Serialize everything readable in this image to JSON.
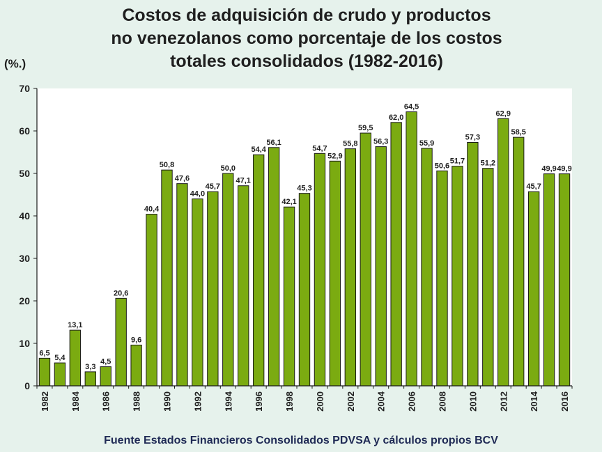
{
  "chart_data": {
    "type": "bar",
    "title": "Costos de adquisición de crudo y productos no venezolanos como porcentaje de los costos totales consolidados (1982-2016)",
    "ylabel": "(%.)",
    "ylim": [
      0,
      70
    ],
    "yticks": [
      0,
      10,
      20,
      30,
      40,
      50,
      60,
      70
    ],
    "grid": false,
    "categories": [
      "1982",
      "1983",
      "1984",
      "1985",
      "1986",
      "1987",
      "1988",
      "1989",
      "1990",
      "1991",
      "1992",
      "1993",
      "1994",
      "1995",
      "1996",
      "1997",
      "1998",
      "1999",
      "2000",
      "2001",
      "2002",
      "2003",
      "2004",
      "2005",
      "2006",
      "2007",
      "2008",
      "2009",
      "2010",
      "2011",
      "2012",
      "2013",
      "2014",
      "2015",
      "2016"
    ],
    "x_tick_labels": [
      "1982",
      "",
      "1984",
      "",
      "1986",
      "",
      "1988",
      "",
      "1990",
      "",
      "1992",
      "",
      "1994",
      "",
      "1996",
      "",
      "1998",
      "",
      "2000",
      "",
      "2002",
      "",
      "2004",
      "",
      "2006",
      "",
      "2008",
      "",
      "2010",
      "",
      "2012",
      "",
      "2014",
      "",
      "2016"
    ],
    "values": [
      6.5,
      5.4,
      13.1,
      3.3,
      4.5,
      20.6,
      9.6,
      40.4,
      50.8,
      47.6,
      44.0,
      45.7,
      50.0,
      47.1,
      54.4,
      56.1,
      42.1,
      45.3,
      54.7,
      52.9,
      55.8,
      59.5,
      56.3,
      62.0,
      64.5,
      55.9,
      50.6,
      51.7,
      57.3,
      51.2,
      62.9,
      58.5,
      45.7,
      49.9,
      49.9
    ],
    "value_labels": [
      "6,5",
      "5,4",
      "13,1",
      "3,3",
      "4,5",
      "20,6",
      "9,6",
      "40,4",
      "50,8",
      "47,6",
      "44,0",
      "45,7",
      "50,0",
      "47,1",
      "54,4",
      "56,1",
      "42,1",
      "45,3",
      "54,7",
      "52,9",
      "55,8",
      "59,5",
      "56,3",
      "62,0",
      "64,5",
      "55,9",
      "50,6",
      "51,7",
      "57,3",
      "51,2",
      "62,9",
      "58,5",
      "45,7",
      "49,9",
      "49,9"
    ],
    "colors": {
      "bar": "#7bab11",
      "bar_edge": "#1a1a1a",
      "plot_bg": "#ffffff",
      "page_bg": "#e6f2ec"
    }
  },
  "header": {
    "title_lines": [
      "Costos de adquisición de crudo y productos",
      "no venezolanos como porcentaje de los costos",
      "totales consolidados (1982-2016)"
    ],
    "unit_label": "(%.)"
  },
  "footer": {
    "source": "Fuente  Estados Financieros Consolidados PDVSA y cálculos propios BCV"
  }
}
